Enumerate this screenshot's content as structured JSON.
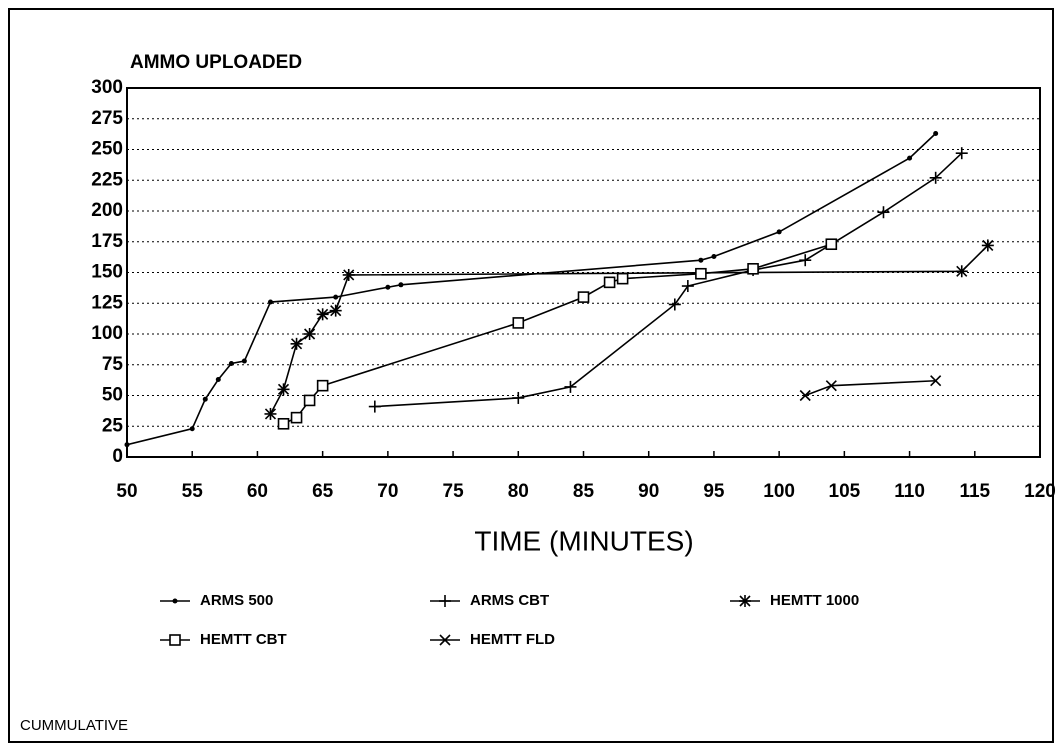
{
  "chart_data": {
    "type": "line",
    "title": "AMMO UPLOADED",
    "x_label": "TIME (MINUTES)",
    "footer": "CUMMULATIVE",
    "xlim": [
      50,
      120
    ],
    "xticks": [
      50,
      55,
      60,
      65,
      70,
      75,
      80,
      85,
      90,
      95,
      100,
      105,
      110,
      115,
      120
    ],
    "ylim": [
      0,
      300
    ],
    "yticks": [
      0,
      25,
      50,
      75,
      100,
      125,
      150,
      175,
      200,
      225,
      250,
      275,
      300
    ],
    "grid": true,
    "series": [
      {
        "name": "ARMS 500",
        "color": "#000000",
        "marker": "dot",
        "x": [
          50,
          55,
          56,
          57,
          58,
          59,
          61,
          66,
          70,
          71,
          94,
          95,
          100,
          110,
          112
        ],
        "values": [
          10,
          23,
          47,
          63,
          76,
          78,
          126,
          130,
          138,
          140,
          160,
          163,
          183,
          243,
          263
        ]
      },
      {
        "name": "ARMS CBT",
        "color": "#000000",
        "marker": "plus",
        "x": [
          69,
          80,
          84,
          92,
          93,
          98,
          102,
          108,
          112,
          114
        ],
        "values": [
          41,
          48,
          57,
          124,
          139,
          152,
          160,
          199,
          227,
          247
        ]
      },
      {
        "name": "HEMTT 1000",
        "color": "#000000",
        "marker": "asterisk",
        "x": [
          61,
          62,
          63,
          64,
          65,
          66,
          67,
          114,
          116
        ],
        "values": [
          35,
          55,
          92,
          100,
          116,
          119,
          148,
          151,
          172
        ]
      },
      {
        "name": "HEMTT CBT",
        "color": "#000000",
        "marker": "square",
        "x": [
          62,
          63,
          64,
          65,
          80,
          85,
          87,
          88,
          94,
          98,
          104
        ],
        "values": [
          27,
          32,
          46,
          58,
          109,
          130,
          142,
          145,
          149,
          153,
          173
        ]
      },
      {
        "name": "HEMTT FLD",
        "color": "#000000",
        "marker": "cross",
        "x": [
          102,
          104,
          112
        ],
        "values": [
          50,
          58,
          62
        ]
      }
    ]
  }
}
